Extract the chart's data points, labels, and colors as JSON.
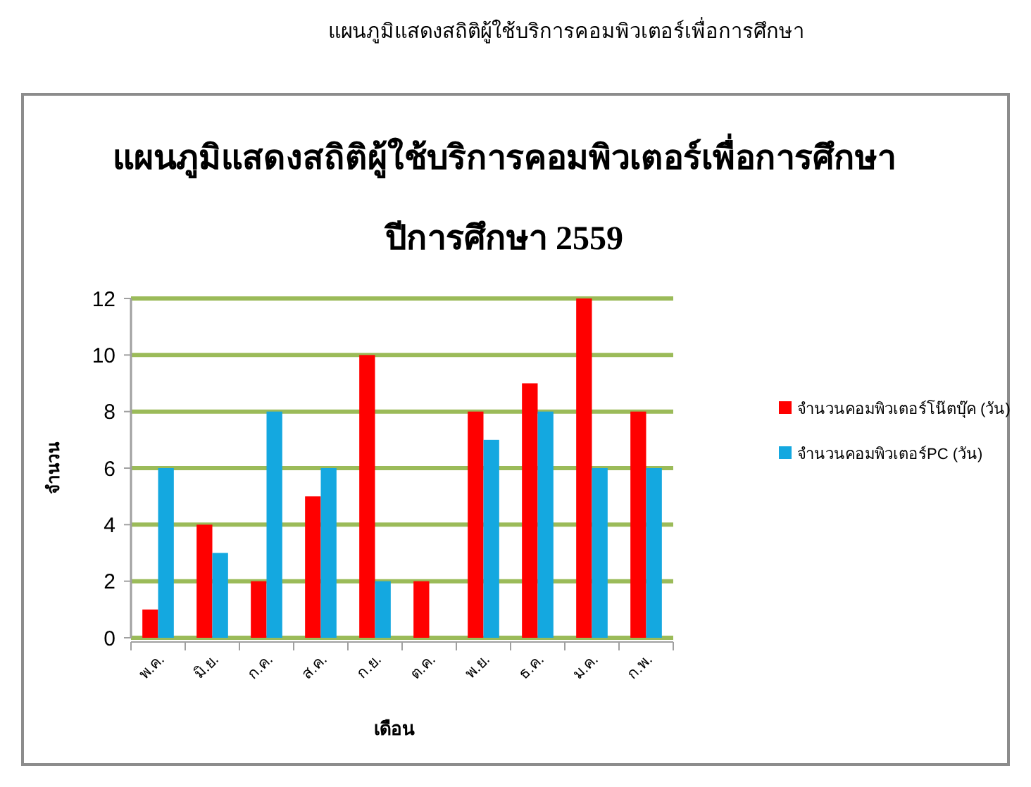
{
  "chart_data": {
    "type": "bar",
    "title": "แผนภูมิแสดงสถิติผู้ใช้บริการคอมพิวเตอร์เพื่อการศึกษา",
    "subtitle": "ปีการศึกษา 2559",
    "annotations": [
      "แผนภูมิแสดงสถิติผู้ใช้บริการคอมพิวเตอร์เพื่อการศึกษา"
    ],
    "xlabel": "เดือน",
    "ylabel": "จำนวน",
    "categories": [
      "พ.ค.",
      "มิ.ย.",
      "ก.ค.",
      "ส.ค.",
      "ก.ย.",
      "ต.ค.",
      "พ.ย.",
      "ธ.ค.",
      "ม.ค.",
      "ก.พ."
    ],
    "series": [
      {
        "name": "จำนวนคอมพิวเตอร์โน๊ตบุ๊ค (วัน)",
        "color": "#ff0000",
        "values": [
          1,
          4,
          2,
          5,
          10,
          2,
          8,
          9,
          12,
          8
        ]
      },
      {
        "name": "จำนวนคอมพิวเตอร์PC (วัน)",
        "color": "#14a8e0",
        "values": [
          6,
          3,
          8,
          6,
          2,
          0,
          7,
          8,
          6,
          6
        ]
      }
    ],
    "ylim": [
      0,
      12
    ],
    "yticks": [
      0,
      2,
      4,
      6,
      8,
      10,
      12
    ],
    "grid": "y",
    "legend": "right"
  }
}
